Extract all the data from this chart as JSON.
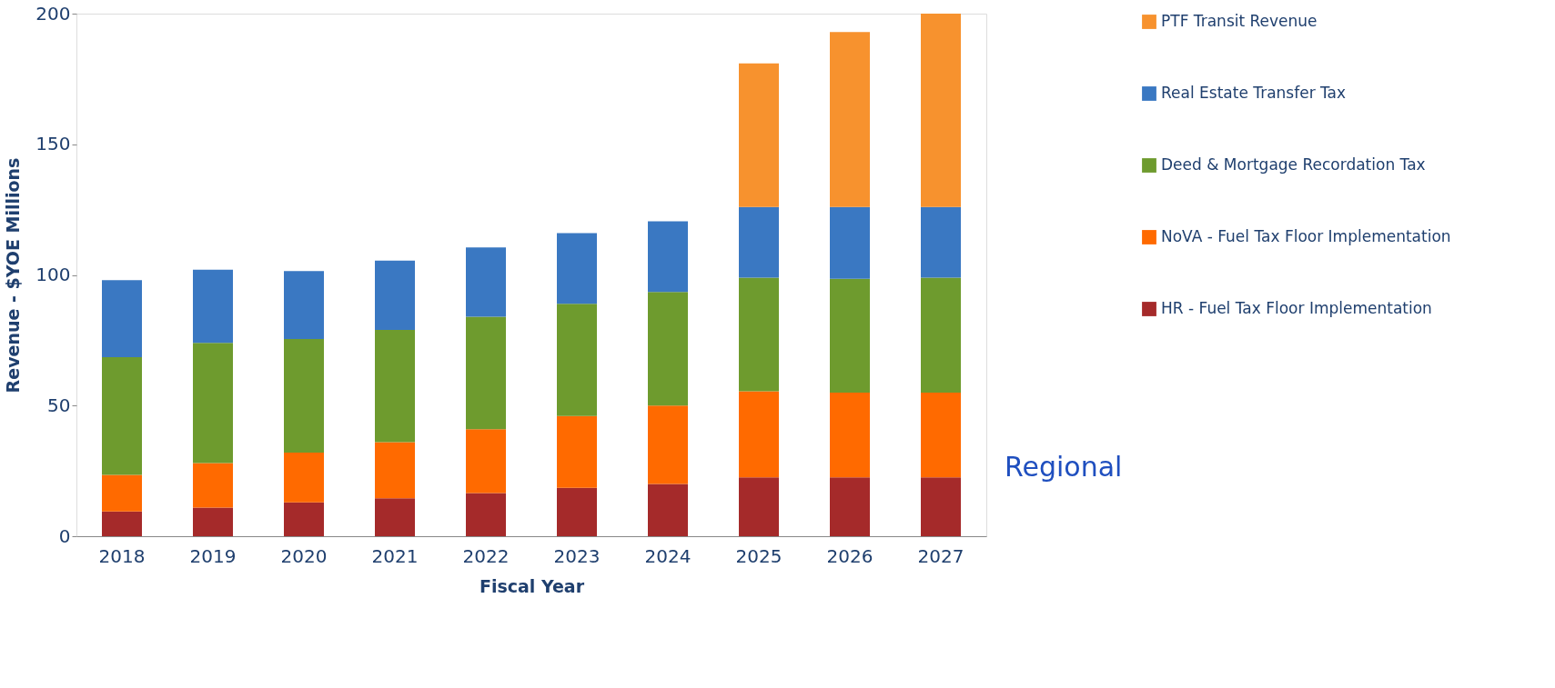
{
  "chart_data": {
    "type": "bar",
    "stacked": true,
    "xlabel": "Fiscal Year",
    "ylabel": "Revenue - $YOE Millions",
    "categories": [
      "2018",
      "2019",
      "2020",
      "2021",
      "2022",
      "2023",
      "2024",
      "2025",
      "2026",
      "2027"
    ],
    "series": [
      {
        "name": "HR - Fuel Tax Floor Implementation",
        "color": "#a52a2a",
        "values": [
          9.5,
          11,
          13,
          14.5,
          16.5,
          18.5,
          20,
          22.5,
          22.5,
          22.5
        ]
      },
      {
        "name": "NoVA - Fuel Tax Floor Implementation",
        "color": "#ff6a00",
        "values": [
          14,
          17,
          19,
          21.5,
          24.5,
          27.5,
          30,
          33,
          32.5,
          32.5
        ]
      },
      {
        "name": "Deed & Mortgage Recordation Tax",
        "color": "#6e9b2e",
        "values": [
          45,
          46,
          43.5,
          43,
          43,
          43,
          43.5,
          43.5,
          43.5,
          44
        ]
      },
      {
        "name": "Real Estate Transfer Tax",
        "color": "#3a78c2",
        "values": [
          29.5,
          28,
          26,
          26.5,
          26.5,
          27,
          27,
          27,
          27.5,
          27
        ]
      },
      {
        "name": "PTF Transit Revenue",
        "color": "#f7922e",
        "values": [
          null,
          null,
          null,
          null,
          null,
          null,
          null,
          55,
          67,
          74
        ]
      }
    ],
    "ylim": [
      0,
      200
    ],
    "yticks": [
      0,
      50,
      100,
      150,
      200
    ],
    "grid": false,
    "legend": "right",
    "annotations": [
      "Regional"
    ]
  }
}
